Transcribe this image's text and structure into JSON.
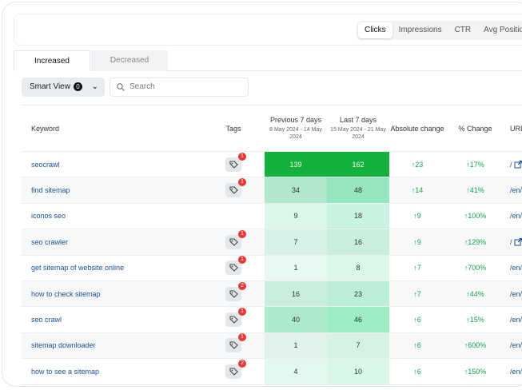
{
  "header": {
    "metric_tabs": [
      "Clicks",
      "Impressions",
      "CTR",
      "Avg Position"
    ],
    "active_tab": "Clicks"
  },
  "subtabs": [
    "Increased",
    "Decreased"
  ],
  "filters": {
    "smart_view": "Smart View",
    "smart_view_count": 0,
    "search_placeholder": "Search"
  },
  "table": {
    "columns": {
      "keyword": "Keyword",
      "tags": "Tags",
      "previous": "Previous 7 days",
      "previous_range": "8 May 2024 - 14 May 2024",
      "last": "Last 7 days",
      "last_range": "15 May 2024 - 21 May 2024",
      "absolute": "Absolute change",
      "percent": "% Change",
      "url": "URL"
    },
    "rows": [
      {
        "keyword": "seocrawl",
        "tags": 1,
        "previous": 139,
        "last": 162,
        "absolute": 23,
        "percent": "17%",
        "url": "/"
      },
      {
        "keyword": "find sitemap",
        "tags": 1,
        "previous": 34,
        "last": 48,
        "absolute": 14,
        "percent": "41%",
        "url": "/en/"
      },
      {
        "keyword": "iconos seo",
        "tags": null,
        "previous": 9,
        "last": 18,
        "absolute": 9,
        "percent": "100%",
        "url": "/en/"
      },
      {
        "keyword": "seo crawler",
        "tags": 1,
        "previous": 7,
        "last": 16,
        "absolute": 9,
        "percent": "129%",
        "url": "/"
      },
      {
        "keyword": "get sitemap of website online",
        "tags": 1,
        "previous": 1,
        "last": 8,
        "absolute": 7,
        "percent": "700%",
        "url": "/en/"
      },
      {
        "keyword": "how to check sitemap",
        "tags": 2,
        "previous": 16,
        "last": 23,
        "absolute": 7,
        "percent": "44%",
        "url": "/en/"
      },
      {
        "keyword": "seo crawl",
        "tags": 1,
        "previous": 40,
        "last": 46,
        "absolute": 6,
        "percent": "15%",
        "url": "/en/"
      },
      {
        "keyword": "sitemap downloader",
        "tags": 1,
        "previous": 1,
        "last": 7,
        "absolute": 6,
        "percent": "600%",
        "url": "/en/"
      },
      {
        "keyword": "how to see a sitemap",
        "tags": 2,
        "previous": 4,
        "last": 10,
        "absolute": 6,
        "percent": "150%",
        "url": "/en/"
      }
    ]
  }
}
